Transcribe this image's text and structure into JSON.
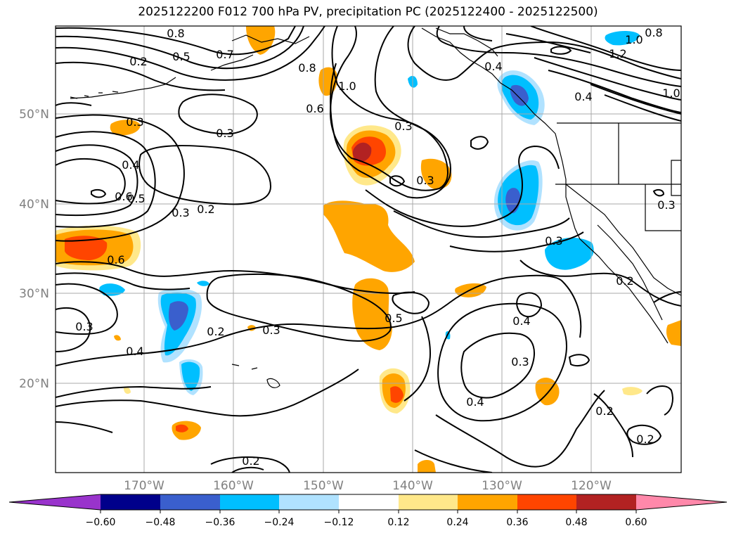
{
  "title": "2025122200 F012 700 hPa PV, precipitation PC (2025122400 - 2025122500)",
  "lat_labels": [
    "50°N",
    "40°N",
    "30°N",
    "20°N"
  ],
  "lon_labels": [
    "170°W",
    "160°W",
    "150°W",
    "140°W",
    "130°W",
    "120°W"
  ],
  "contour_labels": [
    "0.8",
    "0.5",
    "0.7",
    "0.2",
    "0.8",
    "1.0",
    "0.6",
    "0.3",
    "0.3",
    "0.4",
    "0.5",
    "0.6",
    "0.3",
    "0.2",
    "0.6",
    "0.3",
    "1.0",
    "1.2",
    "0.4",
    "1.0",
    "0.3",
    "0.2",
    "0.3",
    "0.5",
    "0.4",
    "0.2",
    "0.3",
    "0.4",
    "0.2",
    "0.2",
    "0.3",
    "0.2",
    "0.4",
    "0.3",
    "0.4",
    "0.3",
    "0.8"
  ],
  "colorbar": {
    "ticks": [
      "−0.60",
      "−0.48",
      "−0.36",
      "−0.24",
      "−0.12",
      "0.12",
      "0.24",
      "0.36",
      "0.48",
      "0.60"
    ],
    "colors": [
      "#9933cc",
      "#00008b",
      "#3a5fcd",
      "#00bfff",
      "#b0e2ff",
      "#ffffff",
      "#ffe88a",
      "#ffa500",
      "#ff4500",
      "#b22222",
      "#ff88aa"
    ]
  },
  "colors": {
    "pos_light": "#ffe88a",
    "pos_mid": "#ffa500",
    "pos_strong": "#ff4500",
    "pos_max": "#b22222",
    "neg_light": "#b0e2ff",
    "neg_mid": "#00bfff",
    "neg_strong": "#3a5fcd"
  }
}
